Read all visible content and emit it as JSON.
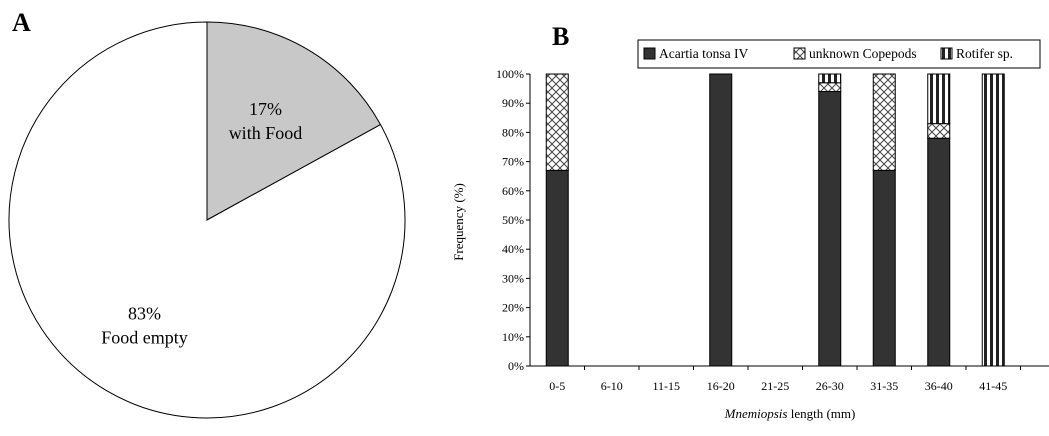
{
  "panels": {
    "a": "A",
    "b": "B"
  },
  "chart_data": [
    {
      "type": "pie",
      "slices": [
        {
          "label": "with Food",
          "percent_label": "17%",
          "value": 17,
          "color": "#c8c8c8"
        },
        {
          "label": "Food empty",
          "percent_label": "83%",
          "value": 83,
          "color": "#ffffff"
        }
      ]
    },
    {
      "type": "bar",
      "stacked": true,
      "categories": [
        "0-5",
        "6-10",
        "11-15",
        "16-20",
        "21-25",
        "26-30",
        "31-35",
        "36-40",
        "41-45"
      ],
      "series": [
        {
          "name": "Acartia tonsa IV",
          "pattern": "solid",
          "color": "#333333",
          "values": [
            67,
            0,
            0,
            100,
            0,
            94,
            67,
            78,
            0
          ]
        },
        {
          "name": "unknown Copepods",
          "pattern": "crosshatch",
          "color": "#333333",
          "values": [
            33,
            0,
            0,
            0,
            0,
            3,
            33,
            5,
            0
          ]
        },
        {
          "name": "Rotifer sp.",
          "pattern": "vertical-stripes",
          "color": "#333333",
          "values": [
            0,
            0,
            0,
            0,
            0,
            3,
            0,
            17,
            100
          ]
        }
      ],
      "ylabel": "Frequency (%)",
      "xlabel_italic": "Mnemiopsis",
      "xlabel_rest": " length (mm)",
      "ylim": [
        0,
        100
      ],
      "yticks": [
        "0%",
        "10%",
        "20%",
        "30%",
        "40%",
        "50%",
        "60%",
        "70%",
        "80%",
        "90%",
        "100%"
      ],
      "legend_position": "top"
    }
  ]
}
